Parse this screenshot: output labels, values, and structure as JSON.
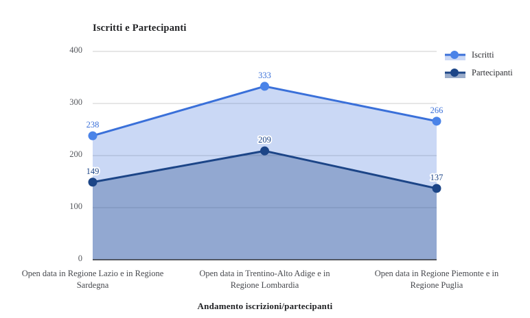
{
  "chart_data": {
    "type": "area",
    "title": "Iscritti e Partecipanti",
    "xlabel": "Andamento iscrizioni/partecipanti",
    "ylabel": "",
    "categories": [
      "Open data in Regione Lazio e in Regione\nSardegna",
      "Open data in Trentino-Alto Adige e in\nRegione Lombardia",
      "Open data in Regione Piemonte e in\nRegione Puglia"
    ],
    "series": [
      {
        "name": "Iscritti",
        "values": [
          238,
          333,
          266
        ],
        "color": "#3a70d9",
        "point_color": "#4a83e8",
        "fill_opacity": 0.27,
        "swatch_fill_opacity": 0.27
      },
      {
        "name": "Partecipanti",
        "values": [
          149,
          209,
          137
        ],
        "color": "#1c4587",
        "point_color": "#1c4587",
        "fill_opacity": 0.32,
        "swatch_fill_opacity": 0.45
      }
    ],
    "ylim": [
      0,
      400
    ],
    "yticks": [
      0,
      100,
      200,
      300,
      400
    ],
    "grid": true,
    "legend_position": "top-right",
    "colors": {
      "gridline": "#cccccc",
      "baseline": "#2e3136",
      "tick_text": "#56585d",
      "category_text": "#46484d",
      "title_text": "#1f2023"
    }
  }
}
